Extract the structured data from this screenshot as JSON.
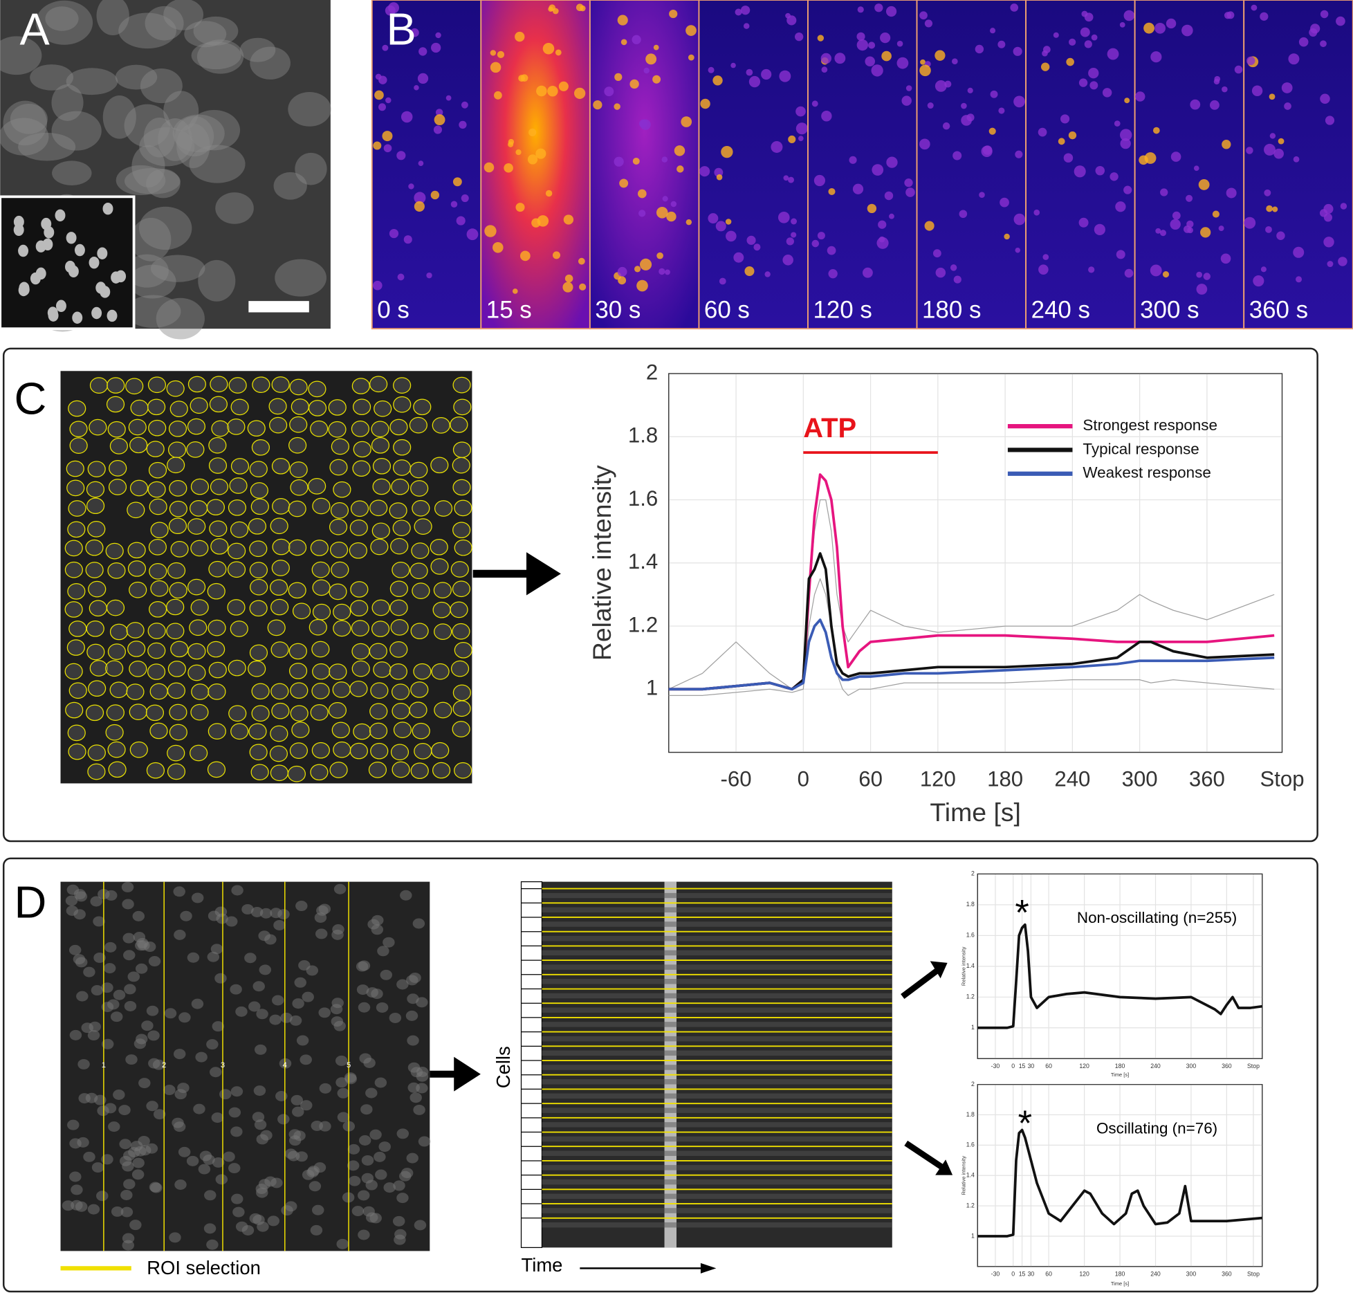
{
  "figure": {
    "panel_labels": [
      "A",
      "B",
      "C",
      "D"
    ],
    "panel_b_times": [
      "0 s",
      "15 s",
      "30 s",
      "60 s",
      "120 s",
      "180 s",
      "240 s",
      "300 s",
      "360 s"
    ],
    "roi_numbers": [
      "1",
      "2",
      "3",
      "4",
      "5"
    ],
    "roi_legend": "ROI selection",
    "kymograph_y_label": "Cells",
    "kymograph_x_label": "Time"
  },
  "chart_data": [
    {
      "type": "line",
      "x_label": "Time [s]",
      "y_label": "Relative intensity",
      "x": [
        -120,
        -90,
        -60,
        -30,
        -10,
        0,
        5,
        10,
        15,
        20,
        25,
        30,
        35,
        40,
        50,
        60,
        90,
        120,
        180,
        240,
        280,
        300,
        310,
        330,
        360,
        420
      ],
      "series": [
        {
          "color": "#a0a0a0",
          "values": [
            1.0,
            1.05,
            1.15,
            1.05,
            1.0,
            1.02,
            1.3,
            1.5,
            1.6,
            1.6,
            1.5,
            1.3,
            1.2,
            1.15,
            1.2,
            1.25,
            1.2,
            1.18,
            1.2,
            1.2,
            1.25,
            1.3,
            1.28,
            1.25,
            1.22,
            1.3
          ]
        },
        {
          "color": "#a0a0a0",
          "values": [
            0.98,
            0.98,
            0.99,
            1.0,
            0.99,
            1.0,
            1.2,
            1.3,
            1.35,
            1.3,
            1.2,
            1.05,
            1.0,
            0.98,
            1.0,
            1.0,
            1.02,
            1.02,
            1.02,
            1.03,
            1.03,
            1.03,
            1.02,
            1.03,
            1.02,
            1.0
          ]
        },
        {
          "name": "Strongest response",
          "color": "#e6157f",
          "values": [
            1.0,
            1.0,
            1.01,
            1.02,
            1.0,
            1.03,
            1.3,
            1.55,
            1.68,
            1.66,
            1.6,
            1.45,
            1.2,
            1.07,
            1.12,
            1.15,
            1.16,
            1.17,
            1.17,
            1.16,
            1.15,
            1.15,
            1.15,
            1.15,
            1.15,
            1.17
          ]
        },
        {
          "name": "Typical response",
          "color": "#111111",
          "values": [
            1.0,
            1.0,
            1.01,
            1.02,
            1.0,
            1.03,
            1.35,
            1.38,
            1.43,
            1.38,
            1.2,
            1.08,
            1.05,
            1.04,
            1.05,
            1.05,
            1.06,
            1.07,
            1.07,
            1.08,
            1.1,
            1.15,
            1.15,
            1.12,
            1.1,
            1.11
          ]
        },
        {
          "name": "Weakest response",
          "color": "#3a5bb5",
          "values": [
            1.0,
            1.0,
            1.01,
            1.02,
            1.0,
            1.02,
            1.15,
            1.2,
            1.22,
            1.18,
            1.1,
            1.05,
            1.03,
            1.03,
            1.04,
            1.04,
            1.05,
            1.05,
            1.06,
            1.07,
            1.08,
            1.09,
            1.09,
            1.09,
            1.09,
            1.1
          ]
        }
      ],
      "annotation": {
        "text": "ATP",
        "color": "#e8141b",
        "start": 0,
        "end": 120,
        "y": 1.75
      },
      "xlim": [
        -120,
        427
      ],
      "ylim": [
        0.8,
        2
      ],
      "xticks": [
        -60,
        0,
        60,
        120,
        180,
        240,
        300,
        360,
        {
          "value": 427,
          "label": "Stop"
        }
      ],
      "yticks": [
        1,
        1.2,
        1.4,
        1.6,
        1.8,
        2
      ],
      "grid": true,
      "legend": "upper right"
    },
    {
      "type": "line",
      "title": "Non-oscillating (n=255)",
      "peak_label": "*",
      "x_label": "Time [s]",
      "y_label": "Relative intensity",
      "x": [
        -60,
        -30,
        -10,
        0,
        5,
        10,
        15,
        20,
        25,
        30,
        40,
        60,
        90,
        120,
        180,
        240,
        300,
        340,
        350,
        360,
        370,
        380,
        400,
        420
      ],
      "series": [
        {
          "color": "#111111",
          "values": [
            1.0,
            1.0,
            1.0,
            1.01,
            1.3,
            1.6,
            1.65,
            1.67,
            1.5,
            1.2,
            1.13,
            1.2,
            1.22,
            1.23,
            1.2,
            1.19,
            1.2,
            1.12,
            1.09,
            1.15,
            1.2,
            1.13,
            1.13,
            1.14
          ]
        }
      ],
      "xlim": [
        -60,
        420
      ],
      "ylim": [
        0.8,
        2
      ],
      "xticks": [
        -30,
        0,
        15,
        30,
        60,
        120,
        180,
        240,
        300,
        360,
        {
          "value": 405,
          "label": "Stop"
        }
      ],
      "yticks": [
        1,
        1.2,
        1.4,
        1.6,
        1.8,
        2
      ],
      "grid": true
    },
    {
      "type": "line",
      "title": "Oscillating (n=76)",
      "peak_label": "*",
      "x_label": "Time [s]",
      "y_label": "Relative intensity",
      "x": [
        -60,
        -30,
        -10,
        0,
        5,
        10,
        15,
        20,
        30,
        40,
        60,
        80,
        100,
        120,
        130,
        150,
        170,
        190,
        200,
        210,
        220,
        240,
        260,
        280,
        290,
        300,
        320,
        360,
        420
      ],
      "series": [
        {
          "color": "#111111",
          "values": [
            1.0,
            1.0,
            1.0,
            1.01,
            1.5,
            1.68,
            1.7,
            1.65,
            1.5,
            1.35,
            1.15,
            1.1,
            1.2,
            1.3,
            1.28,
            1.15,
            1.08,
            1.15,
            1.28,
            1.3,
            1.2,
            1.08,
            1.09,
            1.15,
            1.33,
            1.1,
            1.1,
            1.1,
            1.12
          ]
        }
      ],
      "xlim": [
        -60,
        420
      ],
      "ylim": [
        0.8,
        2
      ],
      "xticks": [
        -30,
        0,
        15,
        30,
        60,
        120,
        180,
        240,
        300,
        360,
        {
          "value": 405,
          "label": "Stop"
        }
      ],
      "yticks": [
        1,
        1.2,
        1.4,
        1.6,
        1.8,
        2
      ],
      "grid": true
    }
  ]
}
